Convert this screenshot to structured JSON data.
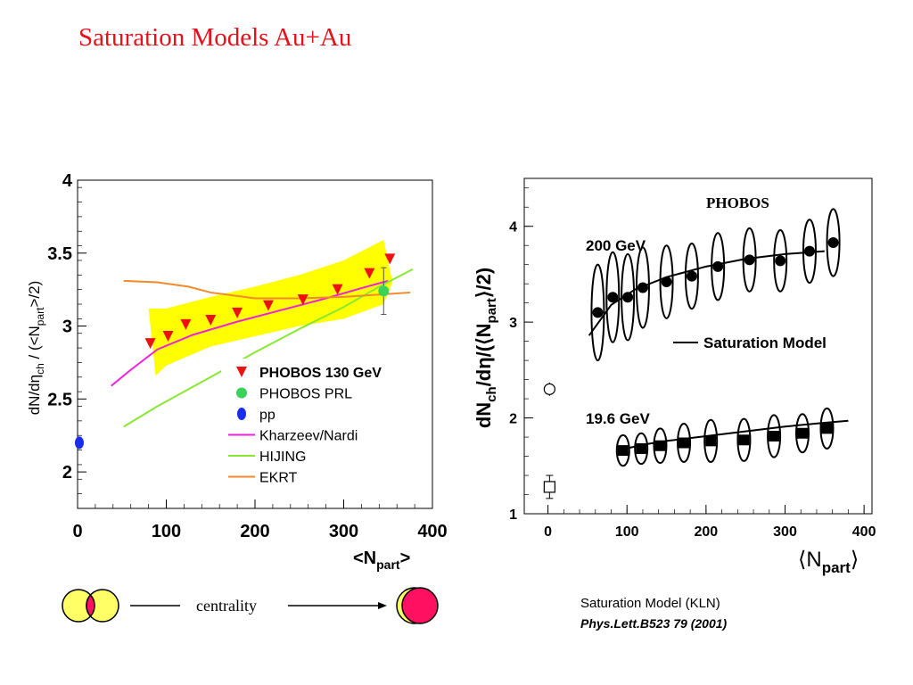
{
  "page": {
    "title": "Saturation Models Au+Au",
    "centrality_label": "centrality",
    "caption_line1": "Saturation Model (KLN)",
    "caption_line2": "Phys.Lett.B523 79 (2001)"
  },
  "colors": {
    "title": "#e8101a",
    "band": "#ffff00",
    "phobos130": "#ee1111",
    "phobos_prl": "#3cd25a",
    "pp": "#1a2cf0",
    "kharzeev": "#ee22dd",
    "hijing": "#88e832",
    "ekrt": "#f28a2c",
    "overlap": "#ff1060",
    "nucleus": "#ffff66"
  },
  "chart_data": [
    {
      "type": "line",
      "xlabel": "<N",
      "xlabel_sub": "part",
      "xlabel_end": ">",
      "ylabel": "dN/dη",
      "ylabel_sub1": "ch",
      "ylabel_mid": " / (<N",
      "ylabel_sub2": "part",
      "ylabel_end": ">/2)",
      "xlim": [
        0,
        400
      ],
      "ylim": [
        1.75,
        4
      ],
      "xticks": [
        "0",
        "100",
        "200",
        "300",
        "400"
      ],
      "yticks": [
        "2",
        "2.5",
        "3",
        "3.5",
        "4"
      ],
      "xtick_values": [
        0,
        100,
        200,
        300,
        400
      ],
      "ytick_values": [
        2,
        2.5,
        3,
        3.5,
        4
      ],
      "band": {
        "x": [
          80,
          100,
          150,
          200,
          250,
          300,
          345,
          355,
          345,
          300,
          250,
          200,
          150,
          100,
          88
        ],
        "y": [
          3.12,
          3.12,
          3.2,
          3.27,
          3.35,
          3.45,
          3.59,
          3.3,
          3.15,
          3.05,
          3.0,
          2.93,
          2.86,
          2.73,
          2.66
        ]
      },
      "series": [
        {
          "name": "PHOBOS 130 GeV",
          "marker": "triangle-down",
          "x": [
            82,
            102,
            122,
            150,
            180,
            215,
            254,
            293,
            329,
            352
          ],
          "y": [
            2.88,
            2.93,
            3.01,
            3.04,
            3.09,
            3.14,
            3.18,
            3.25,
            3.36,
            3.46
          ]
        },
        {
          "name": "PHOBOS PRL",
          "marker": "circle",
          "x": [
            345
          ],
          "y": [
            3.24
          ],
          "yerr": [
            0.16
          ]
        },
        {
          "name": "pp",
          "marker": "circle",
          "x": [
            2
          ],
          "y": [
            2.2
          ]
        },
        {
          "name": "Kharzeev/Nardi",
          "marker": "line",
          "x": [
            38,
            60,
            90,
            130,
            180,
            230,
            280,
            320,
            350
          ],
          "y": [
            2.59,
            2.7,
            2.84,
            2.94,
            3.03,
            3.11,
            3.19,
            3.26,
            3.31
          ]
        },
        {
          "name": "HIJING",
          "marker": "line",
          "x": [
            52,
            90,
            150,
            200,
            250,
            300,
            340,
            378
          ],
          "y": [
            2.31,
            2.45,
            2.65,
            2.82,
            2.98,
            3.13,
            3.27,
            3.39
          ]
        },
        {
          "name": "EKRT",
          "marker": "line",
          "x": [
            52,
            90,
            125,
            150,
            200,
            250,
            300,
            350,
            375
          ],
          "y": [
            3.31,
            3.3,
            3.27,
            3.23,
            3.19,
            3.19,
            3.2,
            3.22,
            3.23
          ]
        }
      ],
      "legend": [
        "PHOBOS 130 GeV",
        "PHOBOS PRL",
        "pp",
        "Kharzeev/Nardi",
        "HIJING",
        "EKRT"
      ],
      "legend_position": "bottom-center"
    },
    {
      "type": "scatter",
      "title": "PHOBOS",
      "xlabel": "⟨N",
      "xlabel_sub": "part",
      "xlabel_end": "⟩",
      "ylabel": "dN",
      "ylabel_sub1": "ch",
      "ylabel_mid": "/dη/(⟨N",
      "ylabel_sub2": "part",
      "ylabel_end": "⟩/2)",
      "xlim": [
        -30,
        410
      ],
      "ylim": [
        1,
        4.5
      ],
      "xticks": [
        "0",
        "100",
        "200",
        "300",
        "400"
      ],
      "yticks": [
        "1",
        "2",
        "3",
        "4"
      ],
      "xtick_values": [
        0,
        100,
        200,
        300,
        400
      ],
      "ytick_values": [
        1,
        2,
        3,
        4
      ],
      "annotations": {
        "high": "200 GeV",
        "low": "19.6 GeV",
        "legend_line": "Saturation Model"
      },
      "series": [
        {
          "name": "200 GeV",
          "marker": "circle",
          "x": [
            63,
            82,
            101,
            120,
            150,
            182,
            215,
            255,
            294,
            331,
            361
          ],
          "y": [
            3.1,
            3.26,
            3.26,
            3.36,
            3.42,
            3.48,
            3.58,
            3.65,
            3.64,
            3.74,
            3.83
          ],
          "erry": [
            0.5,
            0.47,
            0.45,
            0.42,
            0.38,
            0.34,
            0.35,
            0.33,
            0.32,
            0.33,
            0.35
          ]
        },
        {
          "name": "19.6 GeV",
          "marker": "square",
          "x": [
            95,
            118,
            142,
            172,
            206,
            248,
            286,
            322,
            353
          ],
          "y": [
            1.66,
            1.68,
            1.71,
            1.74,
            1.76,
            1.77,
            1.81,
            1.84,
            1.89
          ],
          "erry": [
            0.16,
            0.16,
            0.18,
            0.2,
            0.22,
            0.22,
            0.22,
            0.2,
            0.21
          ]
        },
        {
          "name": "Saturation Model 200 GeV",
          "marker": "line",
          "x": [
            52,
            80,
            110,
            150,
            200,
            250,
            300,
            350
          ],
          "y": [
            2.86,
            3.18,
            3.34,
            3.47,
            3.58,
            3.66,
            3.71,
            3.74
          ]
        },
        {
          "name": "Saturation Model 19.6 GeV",
          "marker": "line",
          "x": [
            88,
            120,
            150,
            200,
            250,
            300,
            350,
            380
          ],
          "y": [
            1.66,
            1.72,
            1.76,
            1.81,
            1.86,
            1.91,
            1.95,
            1.97
          ]
        },
        {
          "name": "pp open circle",
          "marker": "open-circle",
          "x": [
            2
          ],
          "y": [
            2.3
          ],
          "yerr": [
            0.07
          ]
        },
        {
          "name": "pp open square",
          "marker": "open-square",
          "x": [
            2
          ],
          "y": [
            1.28
          ],
          "yerr": [
            0.12
          ]
        }
      ]
    }
  ]
}
